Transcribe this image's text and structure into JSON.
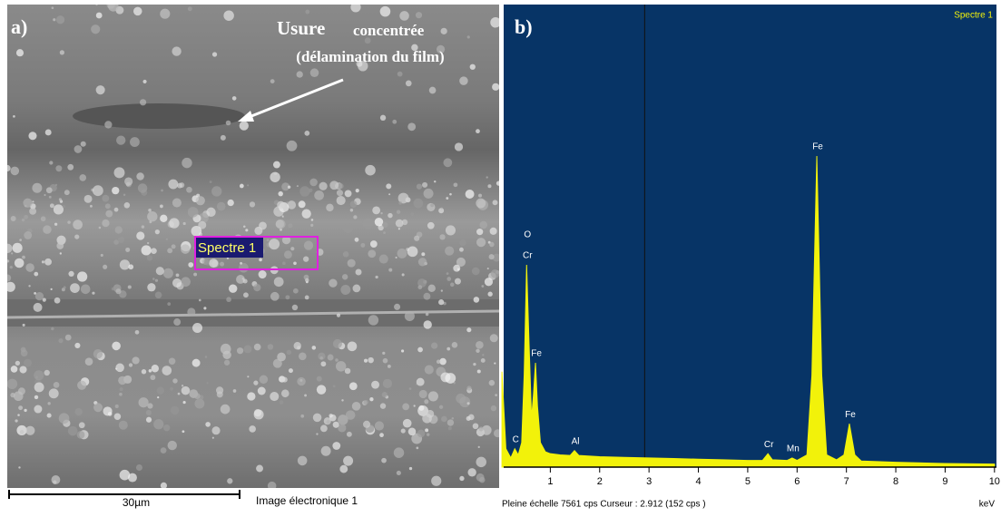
{
  "panel_a": {
    "label": "a)",
    "title_strong": "Usure",
    "title_rest": "concentrée",
    "title_line2": "(délamination du film)",
    "spot_label": "Spectre 1",
    "scale_bar": "30µm",
    "caption": "Image électronique 1"
  },
  "chart_data": {
    "type": "area",
    "label": "b)",
    "legend": "Spectre 1",
    "color": "#f2f20a",
    "background": "#073466",
    "footer": "Pleine échelle 7561 cps  Curseur : 2.912 (152 cps )",
    "x_unit": "keV",
    "xlim": [
      0,
      10.04
    ],
    "ylim": [
      0,
      7561
    ],
    "xticks": [
      1,
      2,
      3,
      4,
      5,
      6,
      7,
      8,
      9,
      10
    ],
    "cursor": 2.912,
    "x": [
      0.02,
      0.1,
      0.2,
      0.28,
      0.35,
      0.42,
      0.47,
      0.52,
      0.57,
      0.62,
      0.66,
      0.7,
      0.74,
      0.8,
      0.9,
      1.0,
      1.2,
      1.4,
      1.49,
      1.58,
      2.0,
      2.5,
      3.0,
      3.5,
      4.0,
      4.5,
      5.0,
      5.3,
      5.41,
      5.5,
      5.8,
      5.9,
      6.0,
      6.2,
      6.3,
      6.4,
      6.5,
      6.6,
      6.8,
      6.95,
      7.06,
      7.17,
      7.3,
      8.0,
      9.0,
      10.0
    ],
    "values": [
      1560,
      300,
      150,
      300,
      200,
      400,
      1500,
      3306,
      2000,
      800,
      1200,
      1705,
      1000,
      400,
      250,
      220,
      200,
      190,
      270,
      190,
      170,
      160,
      150,
      140,
      130,
      120,
      110,
      110,
      220,
      120,
      110,
      150,
      110,
      200,
      1500,
      5085,
      1500,
      200,
      120,
      200,
      710,
      200,
      100,
      80,
      60,
      50
    ],
    "annotations": [
      {
        "text": "C",
        "x": 0.28,
        "y": 300
      },
      {
        "text": "O",
        "x": 0.52,
        "y": 3650
      },
      {
        "text": "Cr",
        "x": 0.52,
        "y": 3306
      },
      {
        "text": "Fe",
        "x": 0.7,
        "y": 1705
      },
      {
        "text": "Al",
        "x": 1.49,
        "y": 270
      },
      {
        "text": "Cr",
        "x": 5.41,
        "y": 220
      },
      {
        "text": "Mn",
        "x": 5.9,
        "y": 150
      },
      {
        "text": "Fe",
        "x": 6.4,
        "y": 5085
      },
      {
        "text": "Fe",
        "x": 7.06,
        "y": 710
      }
    ]
  }
}
